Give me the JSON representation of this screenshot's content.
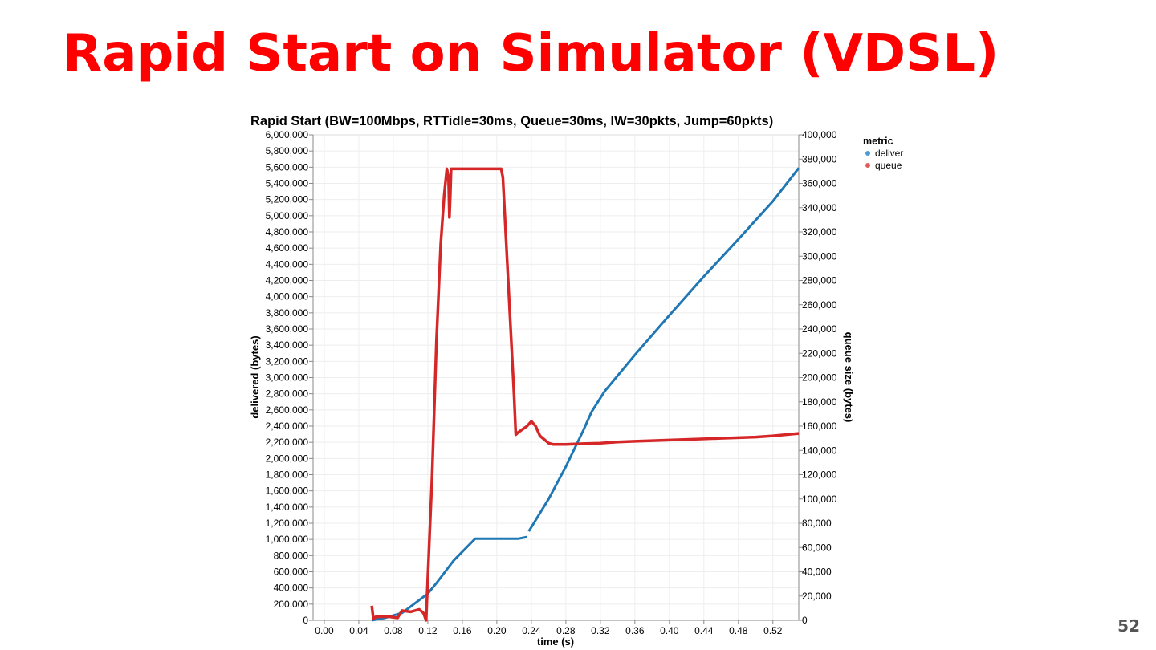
{
  "slide": {
    "title": "Rapid Start on Simulator (VDSL)",
    "page_number": "52",
    "title_color": "#ff0000"
  },
  "chart_data": {
    "type": "line",
    "title": "Rapid Start (BW=100Mbps, RTTidle=30ms, Queue=30ms, IW=30pkts, Jump=60pkts)",
    "xlabel": "time (s)",
    "ylabel_left": "delivered (bytes)",
    "ylabel_right": "queue size (bytes)",
    "xlim": [
      -0.013,
      0.55
    ],
    "ylim_left": [
      0,
      6000000
    ],
    "ylim_right": [
      0,
      400000
    ],
    "grid": true,
    "legend": {
      "title": "metric",
      "position": "top-right",
      "entries": [
        "deliver",
        "queue"
      ]
    },
    "x_ticks": [
      "0.00",
      "0.04",
      "0.08",
      "0.12",
      "0.16",
      "0.20",
      "0.24",
      "0.28",
      "0.32",
      "0.36",
      "0.40",
      "0.44",
      "0.48",
      "0.52"
    ],
    "y_left_ticks": [
      "0",
      "200,000",
      "400,000",
      "600,000",
      "800,000",
      "1,000,000",
      "1,200,000",
      "1,400,000",
      "1,600,000",
      "1,800,000",
      "2,000,000",
      "2,200,000",
      "2,400,000",
      "2,600,000",
      "2,800,000",
      "3,000,000",
      "3,200,000",
      "3,400,000",
      "3,600,000",
      "3,800,000",
      "4,000,000",
      "4,200,000",
      "4,400,000",
      "4,600,000",
      "4,800,000",
      "5,000,000",
      "5,200,000",
      "5,400,000",
      "5,600,000",
      "5,800,000",
      "6,000,000"
    ],
    "y_right_ticks": [
      "0",
      "20,000",
      "40,000",
      "60,000",
      "80,000",
      "100,000",
      "120,000",
      "140,000",
      "160,000",
      "180,000",
      "200,000",
      "220,000",
      "240,000",
      "260,000",
      "280,000",
      "300,000",
      "320,000",
      "340,000",
      "360,000",
      "380,000",
      "400,000"
    ],
    "series": [
      {
        "name": "deliver",
        "axis": "left",
        "color": "#1f77b4",
        "segments": [
          {
            "x": [
              0.055,
              0.07,
              0.09,
              0.1,
              0.11,
              0.12,
              0.13,
              0.15,
              0.175,
              0.2,
              0.225,
              0.235
            ],
            "y": [
              0,
              30000,
              90000,
              170000,
              250000,
              330000,
              460000,
              740000,
              1010000,
              1010000,
              1010000,
              1030000
            ]
          },
          {
            "x": [
              0.237,
              0.26,
              0.28,
              0.3,
              0.31,
              0.325,
              0.36,
              0.4,
              0.44,
              0.48,
              0.52,
              0.55
            ],
            "y": [
              1100000,
              1500000,
              1900000,
              2340000,
              2580000,
              2830000,
              3280000,
              3770000,
              4250000,
              4710000,
              5180000,
              5590000
            ]
          }
        ]
      },
      {
        "name": "queue",
        "axis": "right",
        "color": "#d62728",
        "x": [
          0.055,
          0.057,
          0.06,
          0.075,
          0.085,
          0.09,
          0.1,
          0.11,
          0.115,
          0.118,
          0.12,
          0.125,
          0.13,
          0.135,
          0.139,
          0.142,
          0.144,
          0.145,
          0.146,
          0.147,
          0.15,
          0.17,
          0.205,
          0.207,
          0.22,
          0.222,
          0.225,
          0.235,
          0.24,
          0.245,
          0.25,
          0.26,
          0.265,
          0.28,
          0.3,
          0.32,
          0.34,
          0.36,
          0.38,
          0.4,
          0.42,
          0.44,
          0.46,
          0.48,
          0.5,
          0.52,
          0.55
        ],
        "y": [
          12000,
          1000,
          3000,
          3000,
          2000,
          8000,
          7000,
          9000,
          6000,
          0,
          35000,
          120000,
          230000,
          310000,
          350000,
          372000,
          365000,
          332000,
          350000,
          372000,
          372000,
          372000,
          372000,
          365000,
          185000,
          153000,
          155000,
          160000,
          164000,
          160000,
          152000,
          146000,
          145000,
          145000,
          145500,
          146000,
          147000,
          147500,
          148000,
          148500,
          149000,
          149500,
          150000,
          150500,
          151000,
          152000,
          154000
        ]
      }
    ]
  }
}
